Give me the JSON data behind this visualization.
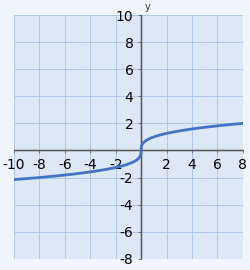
{
  "title": "",
  "xlim": [
    -10,
    8
  ],
  "ylim": [
    -8,
    10
  ],
  "xticks": [
    -10,
    -8,
    -6,
    -4,
    -2,
    2,
    4,
    6,
    8
  ],
  "yticks": [
    -8,
    -6,
    -4,
    -2,
    2,
    4,
    6,
    8,
    10
  ],
  "grid_color": "#aec6e8",
  "grid_linewidth": 0.7,
  "axis_color": "#555555",
  "curve_color": "#4472C4",
  "curve_linewidth": 2.0,
  "background_color": "#f0f4fb",
  "panel_bg": "#dce8f5",
  "x_range": [
    -10,
    8
  ],
  "figsize": [
    2.5,
    2.7
  ],
  "dpi": 100
}
